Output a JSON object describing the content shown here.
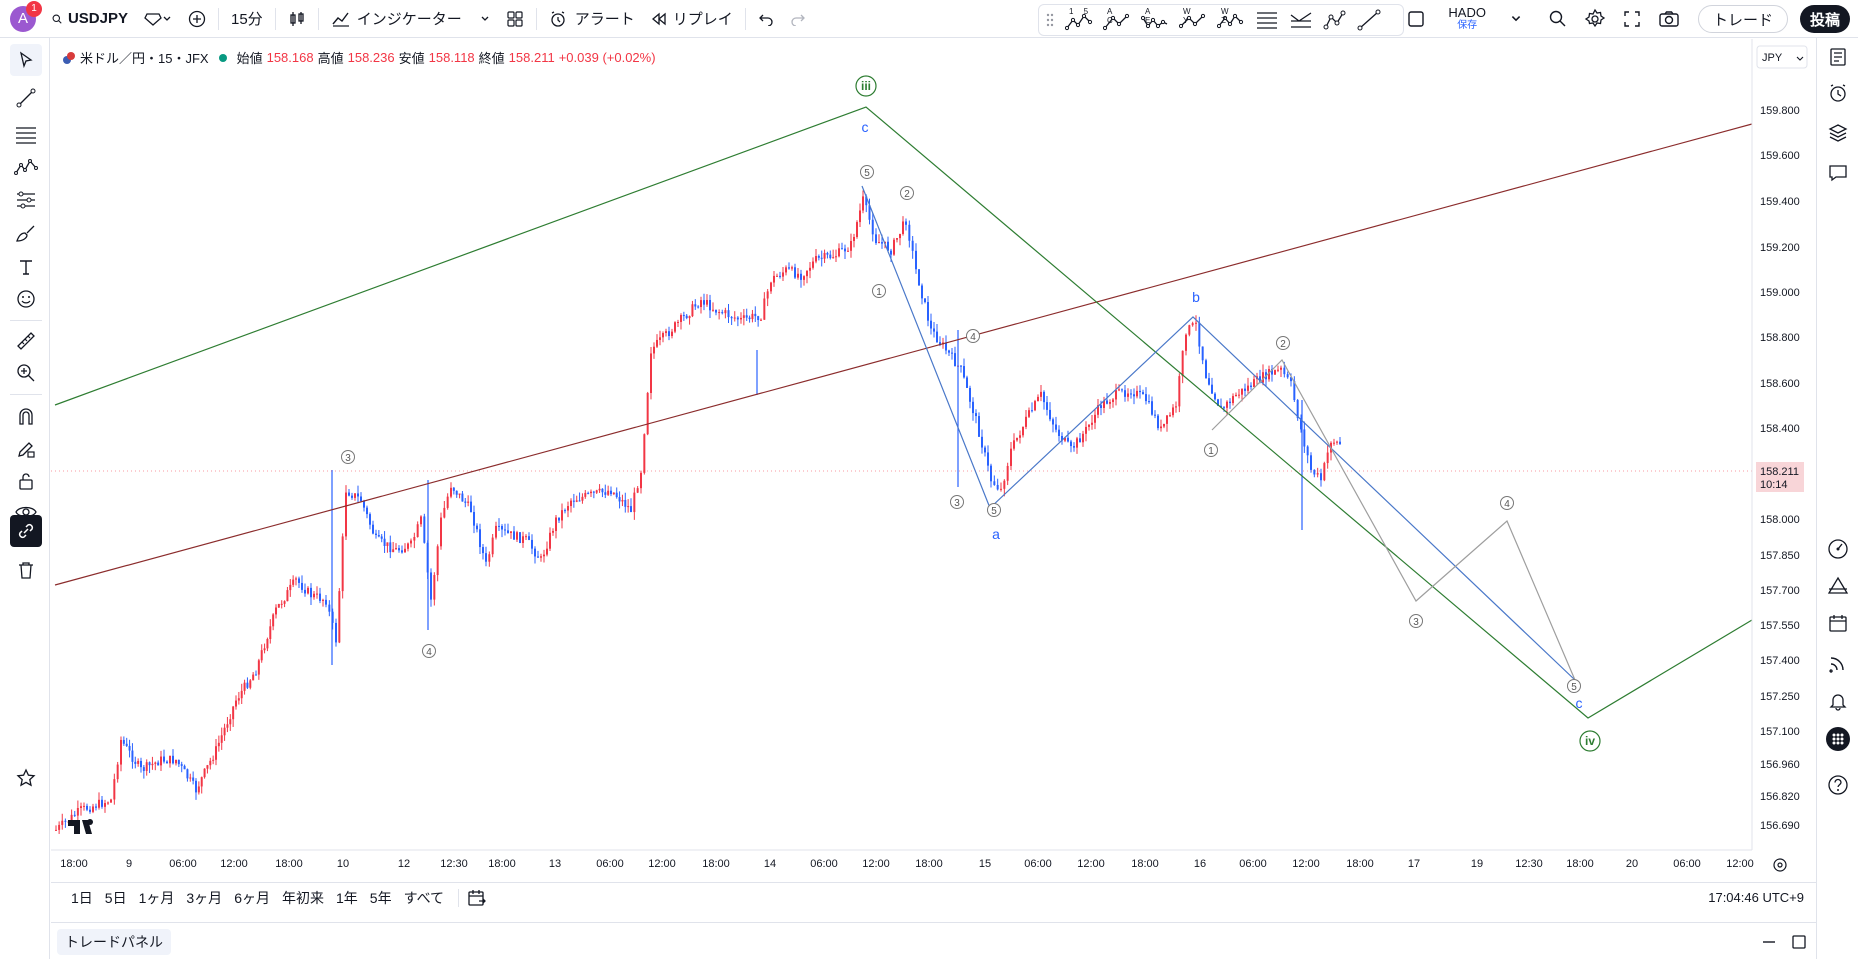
{
  "topbar": {
    "avatar_letter": "A",
    "notification_count": "1",
    "symbol": "USDJPY",
    "interval": "15分",
    "indicators_label": "インジケーター",
    "alert_label": "アラート",
    "replay_label": "リプレイ",
    "drawtool_labels": [
      "1 5",
      "A C",
      "A E",
      "W Y",
      "W Z"
    ],
    "layout_name": "HADO",
    "layout_saved": "保存",
    "trade_label": "トレード",
    "post_label": "投稿"
  },
  "legend": {
    "symbol_desc": "米ドル／円・15・JFX",
    "open_label": "始値",
    "open": "158.168",
    "high_label": "高値",
    "high": "158.236",
    "low_label": "安値",
    "low": "158.118",
    "close_label": "終値",
    "close": "158.211",
    "change": "+0.039 (+0.02%)"
  },
  "price_axis": {
    "currency": "JPY",
    "ticks": [
      "159.800",
      "159.600",
      "159.400",
      "159.200",
      "159.000",
      "158.800",
      "158.600",
      "158.400",
      "158.000",
      "157.850",
      "157.700",
      "157.550",
      "157.400",
      "157.250",
      "157.100",
      "156.960",
      "156.820",
      "156.690"
    ],
    "current_price": "158.211",
    "countdown": "10:14"
  },
  "time_axis": {
    "ticks": [
      "18:00",
      "9",
      "06:00",
      "12:00",
      "18:00",
      "10",
      "12",
      "12:30",
      "18:00",
      "13",
      "06:00",
      "12:00",
      "18:00",
      "14",
      "06:00",
      "12:00",
      "18:00",
      "15",
      "06:00",
      "12:00",
      "18:00",
      "16",
      "06:00",
      "12:00",
      "18:00",
      "17",
      "19",
      "12:30",
      "18:00",
      "20",
      "06:00",
      "12:00"
    ]
  },
  "wave_labels": {
    "big": [
      "iii",
      "iv"
    ],
    "letters": [
      "c",
      "b",
      "a",
      "c"
    ],
    "circled": [
      "3",
      "4",
      "5",
      "1",
      "2",
      "4",
      "3",
      "5",
      "1",
      "2",
      "3",
      "4",
      "5"
    ]
  },
  "bottombar": {
    "ranges": [
      "1日",
      "5日",
      "1ヶ月",
      "3ヶ月",
      "6ヶ月",
      "年初来",
      "1年",
      "5年",
      "すべて"
    ],
    "clock": "17:04:46 UTC+9"
  },
  "tradepanel": {
    "label": "トレードパネル"
  },
  "colors": {
    "up": "#f23645",
    "down": "#2962ff",
    "green_channel": "#2e7d32",
    "brown_line": "#8b2c2c",
    "blue_wave": "#4a78c9",
    "gray_wave": "#9e9e9e"
  }
}
